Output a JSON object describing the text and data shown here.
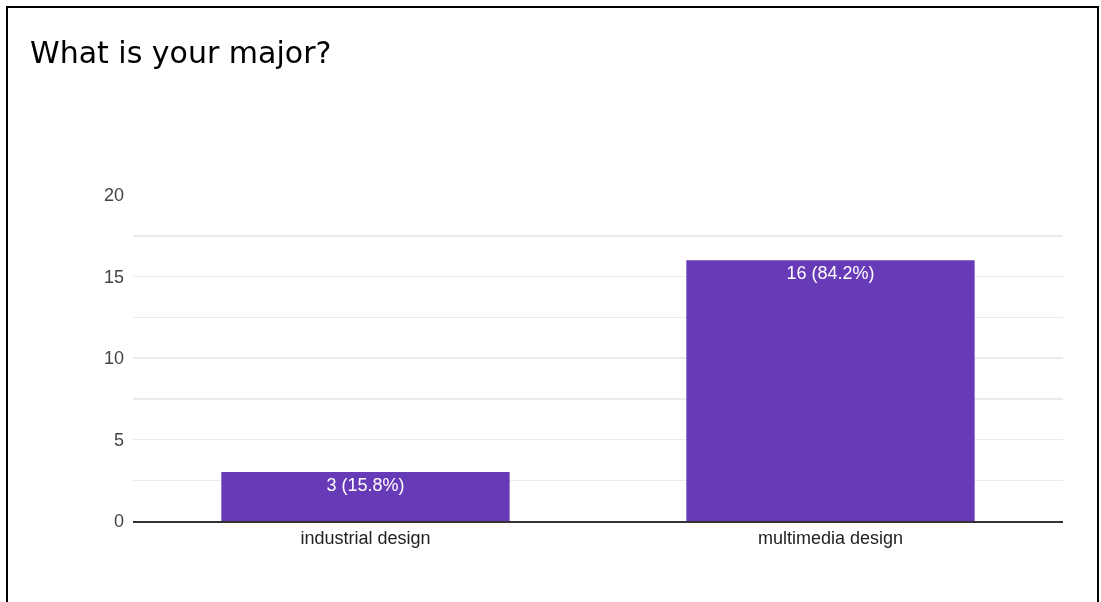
{
  "chart_data": {
    "type": "bar",
    "title": "What is your major?",
    "categories": [
      "industrial design",
      "multimedia design"
    ],
    "values": [
      3,
      16
    ],
    "value_labels": [
      "3 (15.8%)",
      "16 (84.2%)"
    ],
    "color": "#673ab7",
    "ylim": [
      0,
      20
    ],
    "yticks": [
      0,
      {
        "value": 2.5,
        "label": null
      },
      5,
      {
        "value": 7.5,
        "label": null
      },
      10,
      {
        "value": 12.5,
        "label": null
      },
      15,
      {
        "value": 17.5,
        "label": null
      },
      20
    ],
    "grid": "y"
  }
}
